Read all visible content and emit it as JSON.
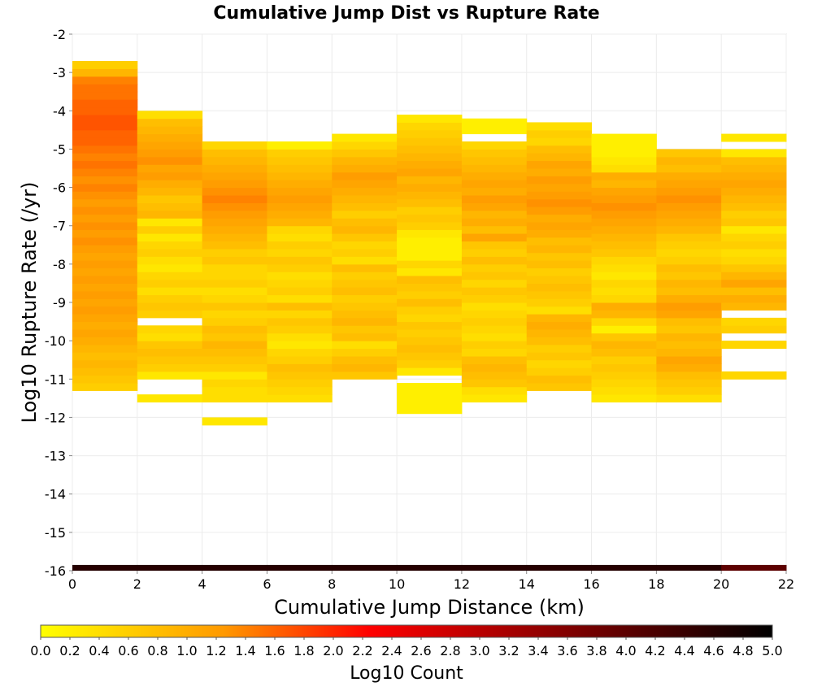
{
  "chart_data": {
    "type": "heatmap",
    "title": "Cumulative Jump Dist vs Rupture Rate",
    "xlabel": "Cumulative Jump Distance (km)",
    "ylabel": "Log10 Rupture Rate (/yr)",
    "xlim": [
      0,
      22
    ],
    "ylim": [
      -16,
      -2
    ],
    "x_bin_width": 2,
    "y_bin_width": 0.2,
    "x_ticks": [
      0,
      2,
      4,
      6,
      8,
      10,
      12,
      14,
      16,
      18,
      20,
      22
    ],
    "y_ticks": [
      -2,
      -3,
      -4,
      -5,
      -6,
      -7,
      -8,
      -9,
      -10,
      -11,
      -12,
      -13,
      -14,
      -15,
      -16
    ],
    "grid": true,
    "colorbar": {
      "label": "Log10 Count",
      "min": 0.0,
      "max": 5.0,
      "ticks": [
        "0.0",
        "0.2",
        "0.4",
        "0.6",
        "0.8",
        "1.0",
        "1.2",
        "1.4",
        "1.6",
        "1.8",
        "2.0",
        "2.2",
        "2.4",
        "2.6",
        "2.8",
        "3.0",
        "3.2",
        "3.4",
        "3.6",
        "3.8",
        "4.0",
        "4.2",
        "4.4",
        "4.6",
        "4.8",
        "5.0"
      ],
      "colors": [
        "#ffff00",
        "#ff7f00",
        "#ff0000",
        "#7f0000",
        "#000000"
      ],
      "placement": "bottom"
    },
    "columns": [
      {
        "x_start": 0,
        "y_start": -11.3,
        "values": [
          0.6,
          0.7,
          0.8,
          0.9,
          0.8,
          0.9,
          1.0,
          1.1,
          1.0,
          1.1,
          1.2,
          1.1,
          1.2,
          1.1,
          1.2,
          1.1,
          1.2,
          1.1,
          1.2,
          1.3,
          1.2,
          1.3,
          1.2,
          1.3,
          1.2,
          1.3,
          1.4,
          1.3,
          1.4,
          1.5,
          1.4,
          1.5,
          1.6,
          1.6,
          1.7,
          1.7,
          1.6,
          1.6,
          1.5,
          1.5,
          1.4,
          0.9,
          0.6
        ]
      },
      {
        "x_start": 2,
        "y_start": -11.6,
        "values": [
          0.3,
          null,
          null,
          0.3,
          0.6,
          0.7,
          0.8,
          0.7,
          0.4,
          0.5,
          null,
          0.6,
          0.7,
          0.6,
          0.4,
          0.6,
          0.5,
          0.3,
          0.4,
          0.6,
          0.5,
          0.3,
          0.6,
          0.3,
          0.9,
          0.8,
          0.7,
          0.9,
          1.0,
          1.2,
          1.1,
          1.3,
          1.2,
          1.1,
          1.0,
          0.9,
          0.8,
          0.4
        ]
      },
      {
        "x_start": 4,
        "y_start": -12.2,
        "values": [
          0.3,
          null,
          null,
          0.4,
          0.4,
          0.5,
          0.3,
          0.6,
          0.7,
          0.8,
          0.9,
          0.7,
          0.8,
          0.6,
          0.5,
          0.7,
          0.5,
          0.4,
          0.6,
          0.5,
          0.5,
          0.7,
          0.6,
          0.8,
          0.9,
          1.0,
          1.1,
          1.2,
          1.3,
          1.4,
          1.3,
          1.2,
          1.1,
          1.0,
          0.9,
          0.8,
          0.5
        ]
      },
      {
        "x_start": 6,
        "y_start": -11.6,
        "values": [
          0.4,
          0.5,
          0.6,
          0.7,
          0.8,
          0.6,
          0.5,
          0.3,
          0.4,
          0.6,
          0.7,
          0.5,
          0.8,
          0.4,
          0.6,
          0.5,
          0.4,
          0.6,
          0.7,
          0.5,
          0.6,
          0.4,
          0.5,
          0.9,
          1.0,
          1.1,
          1.2,
          1.1,
          1.0,
          0.9,
          0.8,
          0.7,
          0.6,
          0.2
        ]
      },
      {
        "x_start": 8,
        "y_start": -11.0,
        "values": [
          0.7,
          0.9,
          0.8,
          0.6,
          0.4,
          0.8,
          0.7,
          0.9,
          0.8,
          0.7,
          0.6,
          0.8,
          0.7,
          0.6,
          0.8,
          0.4,
          0.6,
          0.5,
          0.7,
          0.9,
          0.8,
          0.6,
          0.8,
          0.9,
          1.0,
          1.1,
          1.2,
          1.0,
          0.9,
          0.7,
          0.5,
          0.3
        ]
      },
      {
        "x_start": 10,
        "y_start": -11.9,
        "values": [
          0.2,
          0.2,
          0.2,
          0.2,
          null,
          0.3,
          0.6,
          0.7,
          0.8,
          0.7,
          0.6,
          0.7,
          0.5,
          0.6,
          0.8,
          0.6,
          0.7,
          0.8,
          0.3,
          0.5,
          0.2,
          0.2,
          0.2,
          0.3,
          0.6,
          0.7,
          0.6,
          0.8,
          0.9,
          1.0,
          0.9,
          1.1,
          1.0,
          0.9,
          0.8,
          0.7,
          0.6,
          0.5,
          0.3
        ]
      },
      {
        "x_start": 12,
        "y_start": -11.6,
        "values": [
          0.3,
          0.4,
          0.7,
          0.8,
          0.9,
          0.8,
          0.5,
          0.6,
          0.4,
          0.5,
          0.6,
          0.5,
          0.4,
          0.6,
          0.7,
          0.5,
          0.7,
          0.6,
          0.8,
          0.6,
          0.7,
          1.1,
          0.8,
          1.0,
          0.9,
          1.1,
          1.2,
          1.0,
          1.1,
          1.0,
          0.9,
          0.8,
          0.7,
          0.5,
          null,
          0.2,
          0.2
        ]
      },
      {
        "x_start": 14,
        "y_start": -11.3,
        "values": [
          0.7,
          0.8,
          0.6,
          0.5,
          0.7,
          0.6,
          0.8,
          0.9,
          1.0,
          0.9,
          0.4,
          0.6,
          0.7,
          0.8,
          0.7,
          0.6,
          0.8,
          0.7,
          0.9,
          0.8,
          1.0,
          1.1,
          1.0,
          1.2,
          1.3,
          1.2,
          1.1,
          1.2,
          1.0,
          1.1,
          0.9,
          0.8,
          0.5,
          0.6,
          0.4
        ]
      },
      {
        "x_start": 16,
        "y_start": -11.6,
        "values": [
          0.3,
          0.4,
          0.5,
          0.6,
          0.7,
          0.6,
          0.8,
          0.9,
          0.7,
          0.2,
          0.5,
          0.9,
          1.0,
          0.5,
          0.4,
          0.5,
          0.3,
          0.4,
          0.5,
          0.7,
          0.8,
          0.9,
          1.0,
          1.1,
          1.2,
          1.3,
          1.2,
          1.1,
          0.9,
          1.0,
          0.4,
          0.3,
          0.2,
          0.2,
          0.2
        ]
      },
      {
        "x_start": 18,
        "y_start": -11.6,
        "values": [
          0.4,
          0.6,
          0.7,
          0.8,
          1.0,
          1.1,
          0.9,
          0.8,
          0.9,
          0.7,
          0.8,
          1.1,
          1.2,
          1.0,
          0.8,
          0.9,
          0.7,
          0.8,
          0.6,
          0.5,
          0.6,
          0.7,
          0.9,
          1.0,
          1.1,
          1.2,
          1.3,
          1.2,
          1.1,
          1.0,
          0.8,
          0.9,
          0.7
        ]
      },
      {
        "x_start": 20,
        "y_start": -11.0,
        "values": [
          0.5,
          null,
          null,
          null,
          0.5,
          null,
          0.6,
          0.5,
          null,
          0.9,
          1.0,
          0.8,
          1.1,
          0.9,
          0.7,
          0.5,
          0.4,
          0.6,
          0.5,
          0.3,
          0.7,
          0.6,
          0.8,
          0.9,
          1.0,
          1.1,
          1.0,
          0.9,
          0.8,
          0.3,
          null,
          0.3
        ]
      }
    ],
    "bottom_row": {
      "y_start": -16.0,
      "height": 0.15,
      "values": [
        4.6,
        4.6,
        4.6,
        4.6,
        4.6,
        4.6,
        4.6,
        4.6,
        4.6,
        4.6,
        4.0
      ]
    }
  }
}
